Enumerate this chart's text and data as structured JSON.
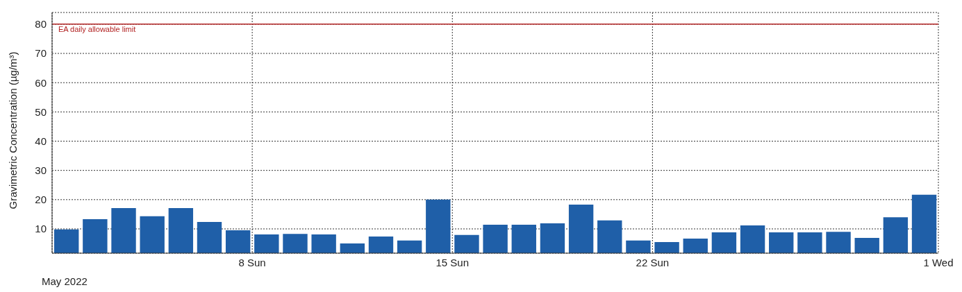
{
  "chart_data": {
    "type": "bar",
    "ylabel": "Gravimetric Concentration (µg/m³)",
    "x": [
      "2022-05-01T12:00",
      "2022-05-02T12:00",
      "2022-05-03T12:00",
      "2022-05-04T12:00",
      "2022-05-05T12:00",
      "2022-05-06T12:00",
      "2022-05-07T12:00",
      "2022-05-08T12:00",
      "2022-05-09T12:00",
      "2022-05-10T12:00",
      "2022-05-11T12:00",
      "2022-05-12T12:00",
      "2022-05-13T12:00",
      "2022-05-14T12:00",
      "2022-05-15T12:00",
      "2022-05-16T12:00",
      "2022-05-17T12:00",
      "2022-05-18T12:00",
      "2022-05-19T12:00",
      "2022-05-20T12:00",
      "2022-05-21T12:00",
      "2022-05-22T12:00",
      "2022-05-23T12:00",
      "2022-05-24T12:00",
      "2022-05-25T12:00",
      "2022-05-26T12:00",
      "2022-05-27T12:00",
      "2022-05-28T12:00",
      "2022-05-29T12:00",
      "2022-05-30T12:00",
      "2022-05-31T12:00"
    ],
    "values": [
      9.8,
      13.3,
      17.1,
      14.3,
      17.1,
      12.4,
      9.5,
      8.1,
      8.3,
      8.1,
      5.0,
      7.4,
      6.0,
      20.0,
      7.9,
      11.4,
      11.4,
      11.9,
      18.3,
      12.9,
      6.0,
      5.5,
      6.7,
      8.8,
      11.2,
      8.8,
      8.8,
      9.0,
      6.9,
      14.0,
      21.7
    ],
    "color": "#1f5fa8",
    "xlim": [
      "2022-05-01",
      "2022-06-01"
    ],
    "xticks": [
      {
        "value": "2022-05-08",
        "label": "8 Sun"
      },
      {
        "value": "2022-05-15",
        "label": "15 Sun"
      },
      {
        "value": "2022-05-22",
        "label": "22 Sun"
      },
      {
        "value": "2022-06-01",
        "label": "1 Wed"
      }
    ],
    "ylim": [
      1.7,
      84
    ],
    "yticks": [
      10,
      20,
      30,
      40,
      50,
      60,
      70,
      80
    ],
    "grid": true,
    "ref_lines": [
      {
        "axis": "y",
        "value": 80,
        "label": "EA daily allowable limit",
        "color": "#b22222"
      }
    ],
    "annotations": [
      "May 2022"
    ]
  }
}
